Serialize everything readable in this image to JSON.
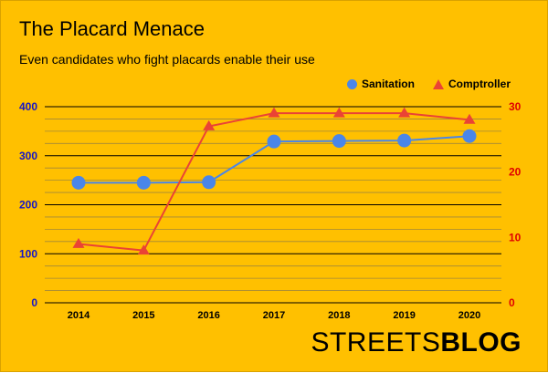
{
  "title": "The Placard Menace",
  "subtitle": "Even candidates who fight placards enable their use",
  "colors": {
    "background": "#FFC000",
    "left_axis": "#1515C8",
    "right_axis": "#E00000"
  },
  "chart_data": {
    "type": "line",
    "x": [
      "2014",
      "2015",
      "2016",
      "2017",
      "2018",
      "2019",
      "2020"
    ],
    "series": [
      {
        "name": "Sanitation",
        "axis": "left",
        "marker": "circle",
        "color": "#4A86E8",
        "values": [
          245,
          245,
          246,
          329,
          330,
          331,
          340
        ]
      },
      {
        "name": "Comptroller",
        "axis": "right",
        "marker": "triangle",
        "color": "#EA4335",
        "values": [
          9,
          8,
          27,
          29,
          29,
          29,
          28
        ]
      }
    ],
    "y_left": {
      "min": 0,
      "max": 400,
      "ticks": [
        "0",
        "100",
        "200",
        "300",
        "400"
      ]
    },
    "y_right": {
      "min": 0,
      "max": 30,
      "ticks": [
        "0",
        "10",
        "20",
        "30"
      ]
    },
    "legend_position": "top-right",
    "grid": true
  },
  "brand": {
    "light": "STREETS",
    "bold": "BLOG"
  }
}
